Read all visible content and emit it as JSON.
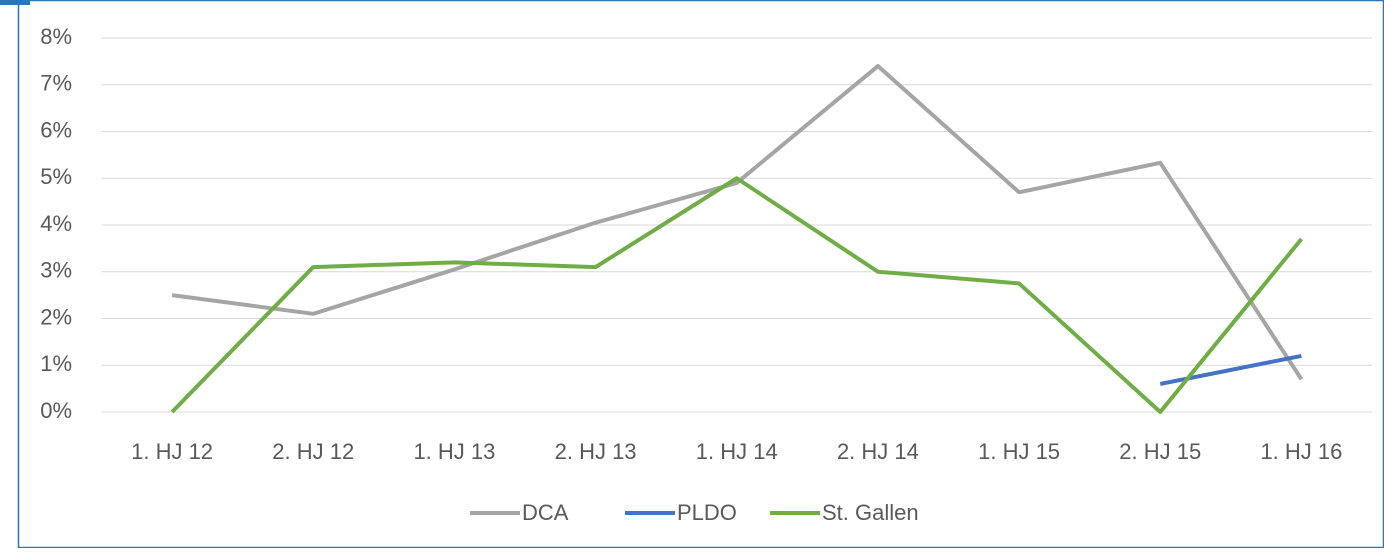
{
  "chart_data": {
    "type": "line",
    "categories": [
      "1. HJ 12",
      "2. HJ 12",
      "1. HJ 13",
      "2. HJ 13",
      "1. HJ 14",
      "2. HJ 14",
      "1. HJ 15",
      "2. HJ 15",
      "1. HJ 16"
    ],
    "series": [
      {
        "name": "DCA",
        "color": "#a5a5a5",
        "values": [
          2.5,
          2.1,
          3.05,
          4.05,
          4.9,
          7.4,
          4.7,
          5.33,
          0.7
        ]
      },
      {
        "name": "PLDO",
        "color": "#4472c4",
        "values": [
          null,
          null,
          null,
          null,
          null,
          null,
          null,
          0.6,
          1.2
        ]
      },
      {
        "name": "St. Gallen",
        "color": "#70ad47",
        "values": [
          0,
          3.1,
          3.2,
          3.1,
          5.0,
          3.0,
          2.75,
          0,
          3.7
        ]
      }
    ],
    "ylim": [
      0,
      8
    ],
    "yticks": [
      {
        "value": 0,
        "label": "0%"
      },
      {
        "value": 1,
        "label": "1%"
      },
      {
        "value": 2,
        "label": "2%"
      },
      {
        "value": 3,
        "label": "3%"
      },
      {
        "value": 4,
        "label": "4%"
      },
      {
        "value": 5,
        "label": "5%"
      },
      {
        "value": 6,
        "label": "6%"
      },
      {
        "value": 7,
        "label": "7%"
      },
      {
        "value": 8,
        "label": "8%"
      }
    ],
    "grid": true,
    "legend": "bottom"
  }
}
